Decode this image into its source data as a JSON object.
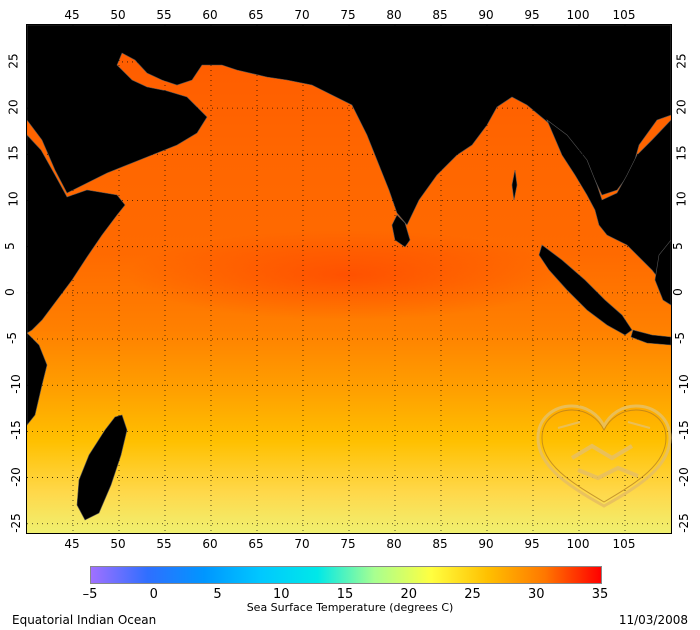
{
  "map": {
    "region_label": "Equatorial Indian Ocean",
    "date": "11/03/2008",
    "lon_range": [
      40,
      110
    ],
    "lat_range": [
      -26,
      29
    ],
    "lon_ticks": [
      45,
      50,
      55,
      60,
      65,
      70,
      75,
      80,
      85,
      90,
      95,
      100,
      105
    ],
    "lat_ticks": [
      25,
      20,
      15,
      10,
      5,
      0,
      -5,
      -10,
      -15,
      -20,
      -25
    ],
    "land_color": "#000000",
    "gridlines": "dotted"
  },
  "colorbar": {
    "label": "Sea Surface Temperature (degrees C)",
    "min": -5,
    "max": 35,
    "ticks": [
      -5,
      0,
      5,
      10,
      15,
      20,
      25,
      30,
      35
    ],
    "colors": [
      "#a070ff",
      "#2f6fff",
      "#0096ff",
      "#00c8ff",
      "#00e8e8",
      "#a8ff90",
      "#ffff40",
      "#ffc000",
      "#ff7800",
      "#ff0000"
    ]
  },
  "emblem_icon": "handshake-heart-watermark"
}
